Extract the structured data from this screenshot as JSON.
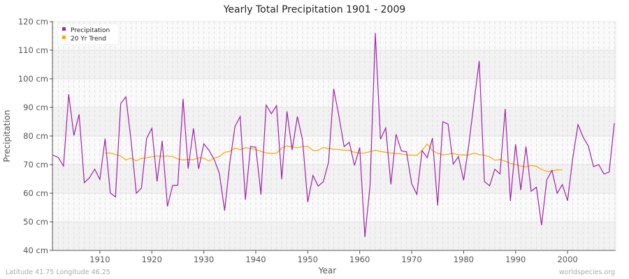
{
  "chart_data": {
    "type": "line",
    "title": "Yearly Total Precipitation 1901 - 2009",
    "xlabel": "Year",
    "ylabel": "Precipitation",
    "xlim": [
      1901,
      2009
    ],
    "ylim": [
      40,
      120
    ],
    "y_unit": "cm",
    "y_ticks": [
      "40 cm",
      "50 cm",
      "60 cm",
      "70 cm",
      "80 cm",
      "90 cm",
      "100 cm",
      "110 cm",
      "120 cm"
    ],
    "x_ticks": [
      "1910",
      "1920",
      "1930",
      "1940",
      "1950",
      "1960",
      "1970",
      "1980",
      "1990",
      "2000"
    ],
    "grid": true,
    "legend_position": "top-left",
    "series": [
      {
        "name": "Precipitation",
        "color": "#a020a8",
        "x_start": 1901,
        "values": [
          73.3,
          72.5,
          69.5,
          94.6,
          80.2,
          87.6,
          63.7,
          65.4,
          68.4,
          64.8,
          79.1,
          60.1,
          58.7,
          91.3,
          93.7,
          78.5,
          60.0,
          61.8,
          79.2,
          82.7,
          64.1,
          78.3,
          55.4,
          62.7,
          62.8,
          93.0,
          68.6,
          82.7,
          68.5,
          77.3,
          75.0,
          71.8,
          66.9,
          53.9,
          70.5,
          83.3,
          86.8,
          57.7,
          76.3,
          76.1,
          59.5,
          90.8,
          87.8,
          90.6,
          64.9,
          88.6,
          75.1,
          86.8,
          78.6,
          56.9,
          66.2,
          62.5,
          64.0,
          70.8,
          96.5,
          87.0,
          76.3,
          77.8,
          69.7,
          76.0,
          44.7,
          62.7,
          116.0,
          78.9,
          82.8,
          63.1,
          80.6,
          74.8,
          74.5,
          63.4,
          59.6,
          74.9,
          72.4,
          79.3,
          55.7,
          85.0,
          84.2,
          70.2,
          72.8,
          64.5,
          77.0,
          92.0,
          106.2,
          64.1,
          62.6,
          68.4,
          66.7,
          89.5,
          57.3,
          77.1,
          61.1,
          76.3,
          60.7,
          62.1,
          48.8,
          64.6,
          68.0,
          60.0,
          63.0,
          57.4,
          72.2,
          84.0,
          79.6,
          76.5,
          69.3,
          70.0,
          66.7,
          67.4,
          84.5
        ]
      },
      {
        "name": "20 Yr Trend",
        "color": "#ffa500",
        "x_start": 1911,
        "values": [
          74.0,
          74.1,
          73.5,
          73.0,
          71.6,
          72.3,
          71.3,
          72.2,
          72.4,
          72.7,
          73.0,
          72.9,
          73.0,
          72.8,
          72.0,
          71.6,
          71.8,
          71.7,
          72.4,
          72.3,
          71.2,
          72.3,
          72.8,
          74.3,
          74.6,
          75.8,
          75.2,
          75.9,
          75.6,
          75.3,
          74.6,
          74.1,
          73.9,
          74.0,
          75.8,
          76.5,
          76.2,
          75.9,
          76.3,
          76.4,
          74.9,
          75.0,
          76.0,
          75.6,
          75.4,
          75.3,
          75.0,
          75.0,
          74.3,
          74.0,
          74.1,
          74.5,
          75.0,
          74.6,
          74.3,
          74.1,
          73.9,
          73.7,
          73.4,
          73.3,
          73.3,
          74.9,
          77.3,
          74.8,
          74.0,
          73.4,
          73.6,
          74.0,
          73.4,
          73.4,
          73.4,
          74.0,
          73.5,
          73.3,
          72.7,
          71.5,
          71.8,
          71.2,
          70.4,
          70.0,
          69.5,
          69.2,
          69.7,
          69.4,
          68.3,
          67.6,
          67.8,
          68.2,
          68.1
        ]
      }
    ]
  },
  "footer": {
    "location": "Latitude 41.75 Longitude 46.25",
    "source": "worldspecies.org"
  }
}
